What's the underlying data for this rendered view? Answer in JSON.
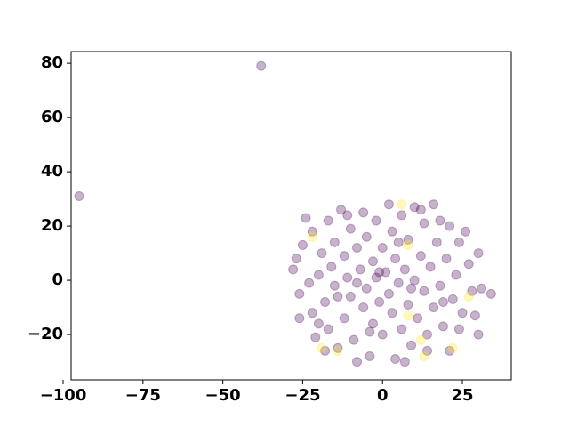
{
  "chart_data": {
    "type": "scatter",
    "xlim": [
      -97.5,
      40.3
    ],
    "ylim": [
      -36.7,
      84.3
    ],
    "xticks": [
      {
        "value": -100,
        "label": "−100"
      },
      {
        "value": -75,
        "label": "−75"
      },
      {
        "value": -50,
        "label": "−50"
      },
      {
        "value": -25,
        "label": "−25"
      },
      0,
      25
    ],
    "yticks": [
      {
        "value": -20,
        "label": "−20"
      },
      0,
      20,
      40,
      60,
      80
    ],
    "series": [
      {
        "color": "#440154",
        "x": [
          -95,
          -38,
          -28,
          -27,
          -26,
          -25,
          -24,
          -23,
          -22,
          -22,
          -21,
          -20,
          -19,
          -18,
          -17,
          -17,
          -16,
          -15,
          -15,
          -14,
          -13,
          -12,
          -12,
          -11,
          -10,
          -10,
          -9,
          -8,
          -8,
          -7,
          -6,
          -6,
          -5,
          -5,
          -4,
          -3,
          -3,
          -2,
          -2,
          -1,
          0,
          0,
          1,
          2,
          2,
          3,
          3,
          4,
          4,
          5,
          6,
          6,
          7,
          8,
          8,
          9,
          10,
          10,
          11,
          12,
          13,
          13,
          14,
          15,
          16,
          16,
          17,
          18,
          19,
          20,
          21,
          21,
          22,
          23,
          24,
          25,
          26,
          27,
          28,
          29,
          30,
          30,
          31,
          34,
          -8,
          7,
          -18,
          -20,
          -26,
          14,
          12,
          -14,
          -4,
          5,
          18,
          -11,
          9,
          -1,
          19,
          24
        ],
        "values": [
          31,
          79,
          4,
          8,
          -5,
          13,
          23,
          -1,
          18,
          -12,
          -21,
          2,
          10,
          -8,
          22,
          -18,
          5,
          -2,
          14,
          -25,
          26,
          -14,
          9,
          1,
          -6,
          19,
          -22,
          12,
          -1,
          4,
          -10,
          25,
          -3,
          16,
          -28,
          7,
          -16,
          1,
          22,
          -8,
          12,
          -20,
          3,
          -5,
          28,
          18,
          -12,
          -29,
          8,
          -1,
          24,
          -18,
          4,
          -9,
          15,
          -24,
          0,
          27,
          -14,
          9,
          -4,
          21,
          -20,
          5,
          -10,
          28,
          14,
          -2,
          -17,
          8,
          20,
          -26,
          -7,
          2,
          14,
          -12,
          18,
          6,
          -4,
          -13,
          -20,
          10,
          -3,
          -5,
          -30,
          -30,
          -26,
          -16,
          -14,
          -26,
          26,
          -6,
          -19,
          14,
          22,
          24,
          -3,
          3,
          -8,
          -18
        ]
      },
      {
        "color": "#fde725",
        "x": [
          -22,
          -19,
          -14,
          6,
          8,
          8,
          12,
          13,
          22,
          27
        ],
        "values": [
          16,
          -25,
          -26,
          28,
          13,
          -13,
          -22,
          -28,
          -25,
          -6
        ]
      }
    ]
  }
}
